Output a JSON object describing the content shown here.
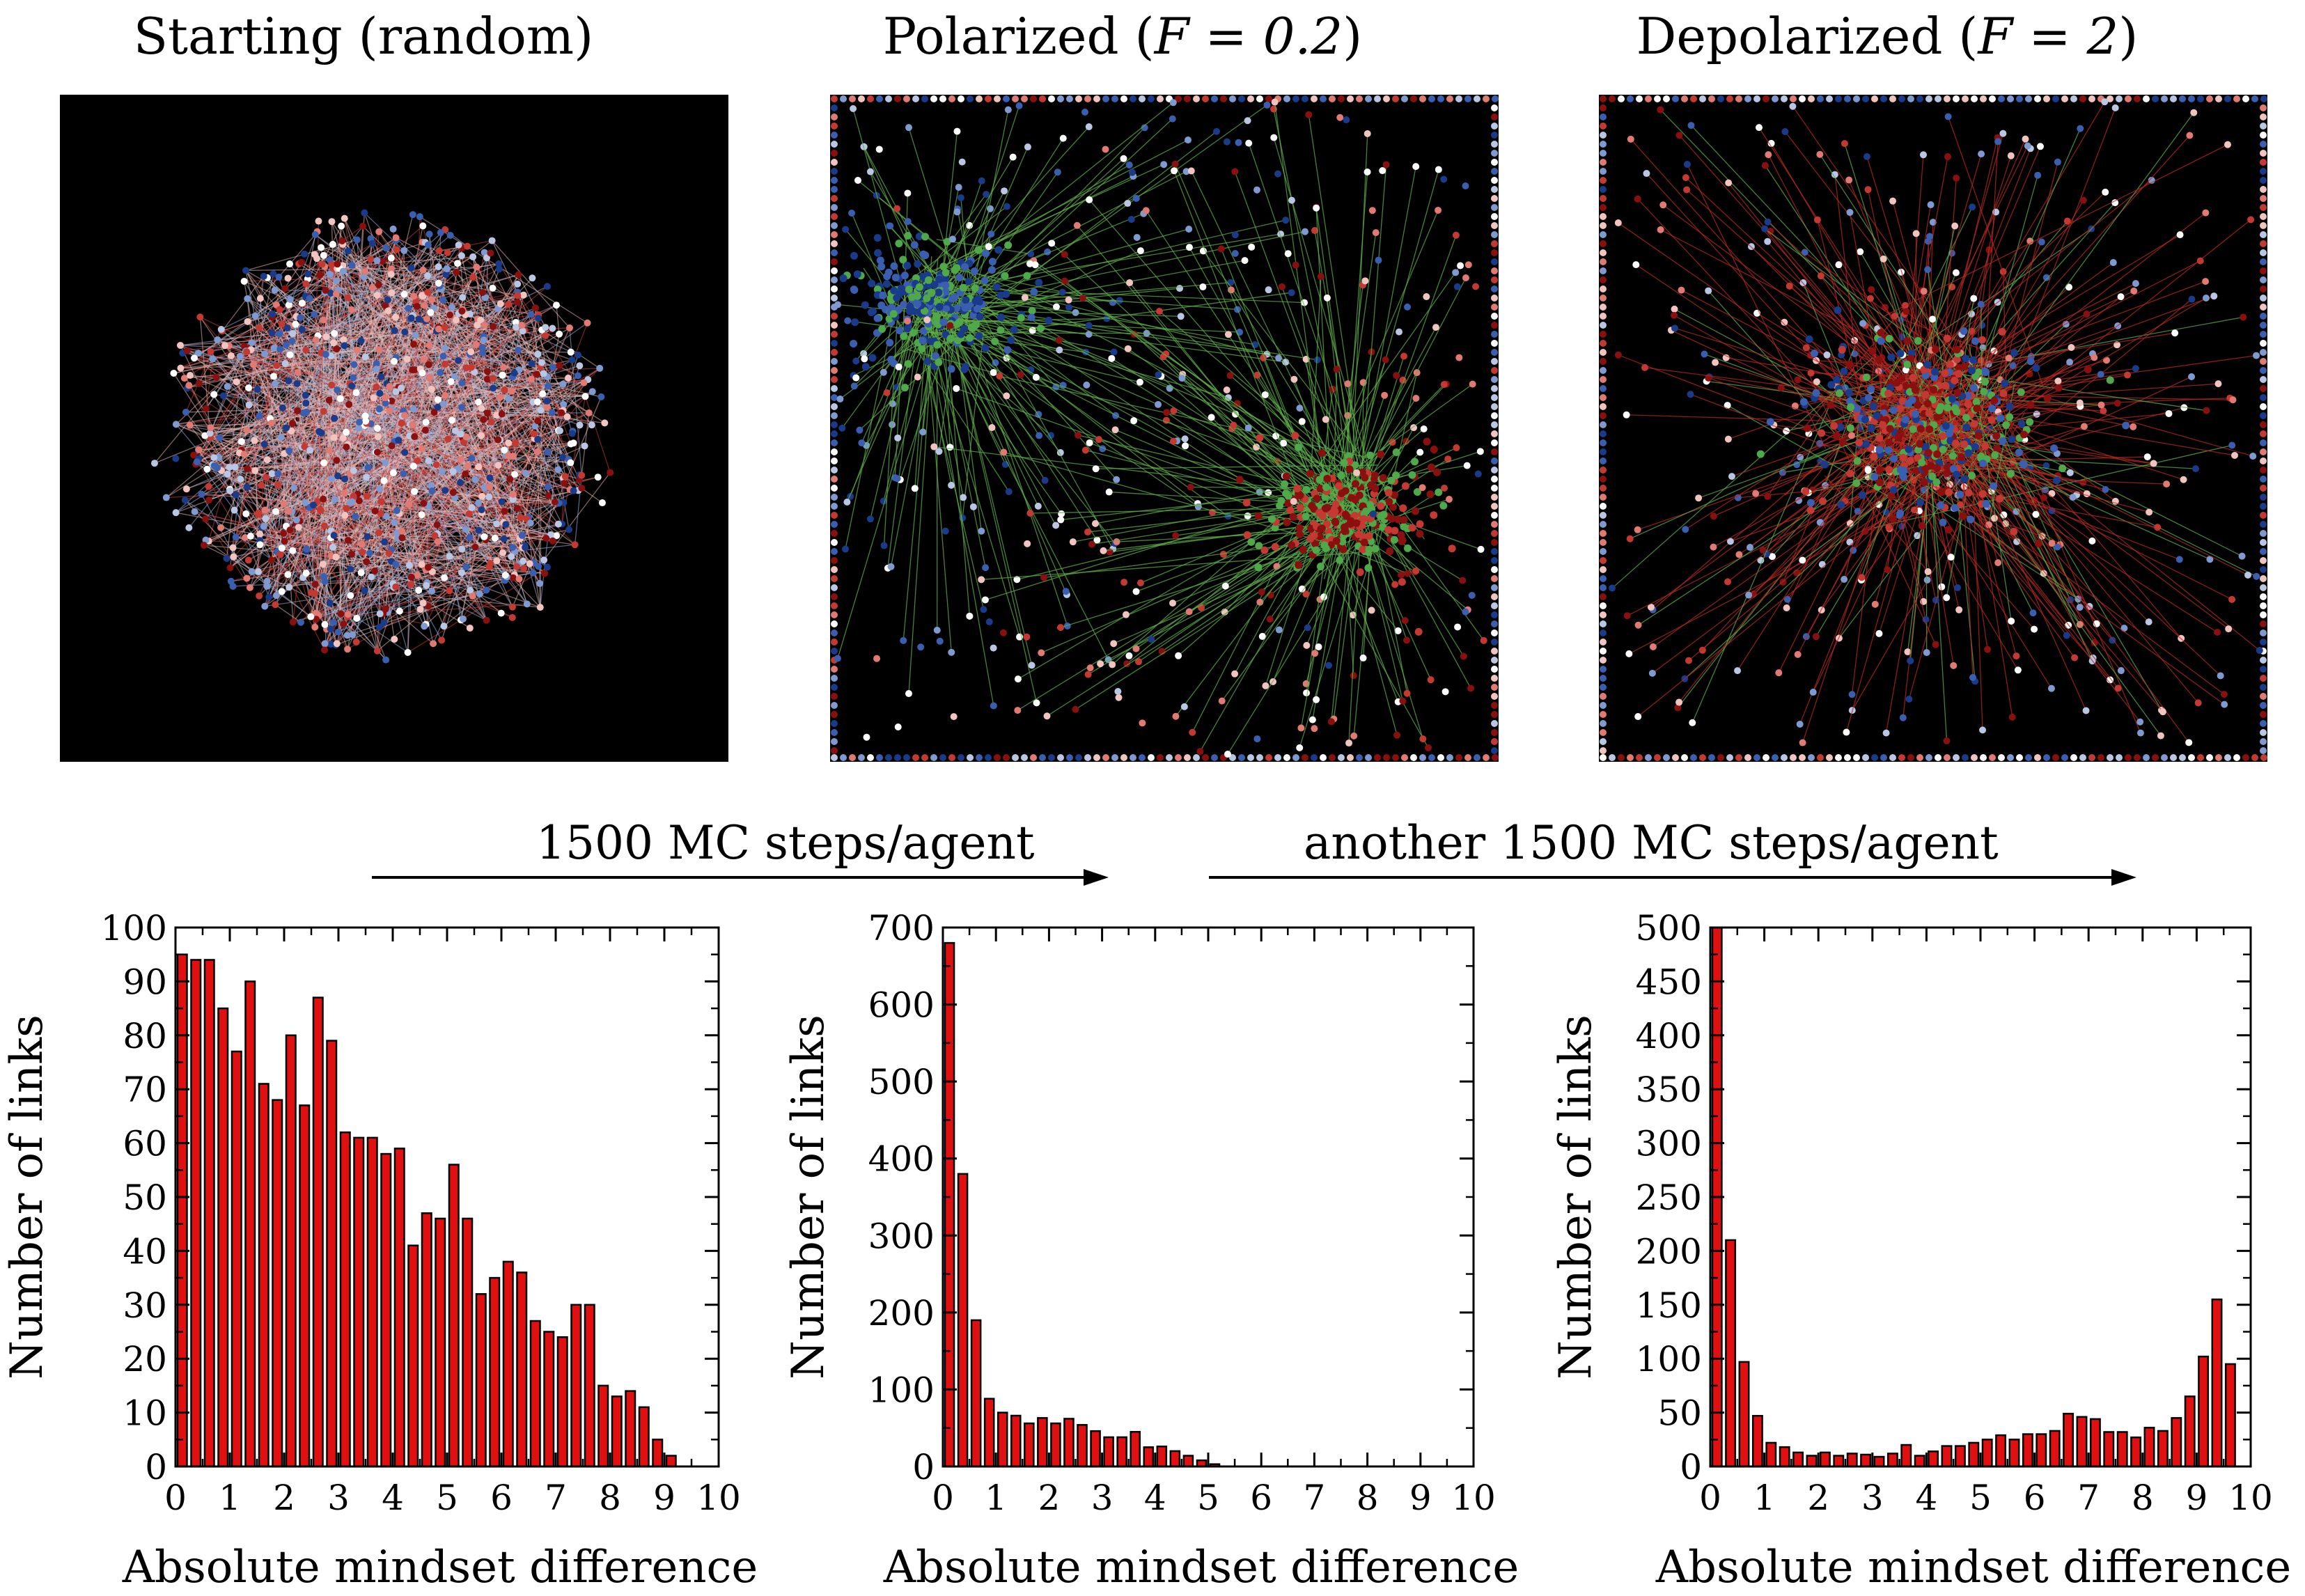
{
  "colors": {
    "bar_fill": "#e01010",
    "bar_edge": "#000000",
    "net_bg": "#000000",
    "node_palette": [
      "#1a3a8a",
      "#3b5fb0",
      "#7f9ad0",
      "#b9c6e4",
      "#ffffff",
      "#f2c4c0",
      "#e07a72",
      "#c43a32",
      "#8a1010"
    ],
    "edge_green": "#5fae4a",
    "edge_red": "#b62a22",
    "edge_gray": "#c8c8c8"
  },
  "panels": [
    {
      "title_text": "Starting (random)",
      "title_math": ""
    },
    {
      "title_text": "Polarized",
      "title_math": "F = 0.2"
    },
    {
      "title_text": "Depolarized",
      "title_math": "F = 2"
    }
  ],
  "arrows": [
    {
      "label": "1500 MC steps/agent"
    },
    {
      "label": "another 1500 MC steps/agent"
    }
  ],
  "chart_data": [
    {
      "type": "bar",
      "title": "",
      "xlabel": "Absolute mindset difference",
      "ylabel": "Number of links",
      "xlim": [
        0,
        10
      ],
      "ylim": [
        0,
        100
      ],
      "yticks": [
        0,
        10,
        20,
        30,
        40,
        50,
        60,
        70,
        80,
        90,
        100
      ],
      "xticks": [
        0,
        1,
        2,
        3,
        4,
        5,
        6,
        7,
        8,
        9,
        10
      ],
      "bin_width": 0.25,
      "values": [
        95,
        94,
        94,
        85,
        77,
        90,
        71,
        68,
        80,
        67,
        87,
        79,
        62,
        61,
        61,
        58,
        59,
        41,
        47,
        46,
        56,
        46,
        32,
        35,
        38,
        36,
        27,
        25,
        24,
        30,
        30,
        15,
        13,
        14,
        11,
        5,
        2,
        0,
        0,
        0
      ]
    },
    {
      "type": "bar",
      "title": "",
      "xlabel": "Absolute mindset difference",
      "ylabel": "Number of links",
      "xlim": [
        0,
        10
      ],
      "ylim": [
        0,
        700
      ],
      "yticks": [
        0,
        100,
        200,
        300,
        400,
        500,
        600,
        700
      ],
      "xticks": [
        0,
        1,
        2,
        3,
        4,
        5,
        6,
        7,
        8,
        9,
        10
      ],
      "bin_width": 0.25,
      "values": [
        680,
        380,
        190,
        88,
        70,
        66,
        56,
        63,
        56,
        62,
        54,
        46,
        38,
        38,
        45,
        25,
        26,
        20,
        14,
        8,
        3,
        0,
        0,
        0,
        0,
        0,
        0,
        0,
        0,
        0,
        0,
        0,
        0,
        0,
        0,
        0,
        0,
        0,
        0,
        0
      ]
    },
    {
      "type": "bar",
      "title": "",
      "xlabel": "Absolute mindset difference",
      "ylabel": "Number of links",
      "xlim": [
        0,
        10
      ],
      "ylim": [
        0,
        500
      ],
      "yticks": [
        0,
        50,
        100,
        150,
        200,
        250,
        300,
        350,
        400,
        450,
        500
      ],
      "xticks": [
        0,
        1,
        2,
        3,
        4,
        5,
        6,
        7,
        8,
        9,
        10
      ],
      "bin_width": 0.25,
      "values": [
        500,
        210,
        97,
        47,
        22,
        18,
        13,
        10,
        13,
        10,
        12,
        11,
        9,
        12,
        20,
        10,
        14,
        19,
        19,
        22,
        25,
        29,
        25,
        30,
        30,
        33,
        49,
        46,
        44,
        32,
        32,
        27,
        36,
        33,
        45,
        65,
        102,
        155,
        95,
        0
      ]
    }
  ]
}
